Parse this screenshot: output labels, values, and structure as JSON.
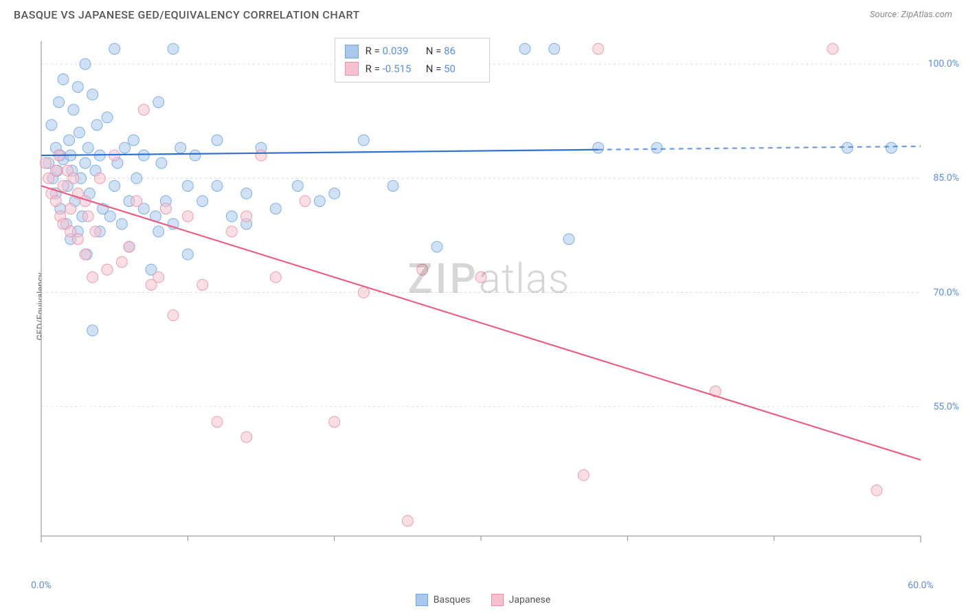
{
  "title": "BASQUE VS JAPANESE GED/EQUIVALENCY CORRELATION CHART",
  "source": "Source: ZipAtlas.com",
  "ylabel": "GED/Equivalency",
  "watermark_zip": "ZIP",
  "watermark_atlas": "atlas",
  "chart": {
    "type": "scatter",
    "xlim": [
      0,
      60
    ],
    "ylim": [
      38,
      103
    ],
    "xtick_labels": [
      "0.0%",
      "60.0%"
    ],
    "xtick_positions": [
      0,
      60
    ],
    "xtick_minor": [
      10,
      20,
      30,
      40,
      50
    ],
    "ytick_labels": [
      "55.0%",
      "70.0%",
      "85.0%",
      "100.0%"
    ],
    "ytick_positions": [
      55,
      70,
      85,
      100
    ],
    "grid_color": "#d8d8d8",
    "axis_color": "#888888",
    "background_color": "#ffffff",
    "marker_radius": 8,
    "marker_opacity": 0.55,
    "line_width": 2.2,
    "series": [
      {
        "name": "Basques",
        "color_fill": "#a9c8ec",
        "color_stroke": "#6fa3dd",
        "line_color": "#2e6fd0",
        "R": "0.039",
        "N": "86",
        "trend": {
          "x1": 0,
          "y1": 88.0,
          "x2": 60,
          "y2": 89.2,
          "solid_until_x": 38
        },
        "points": [
          [
            0.5,
            87
          ],
          [
            0.7,
            92
          ],
          [
            0.8,
            85
          ],
          [
            1,
            89
          ],
          [
            1,
            83
          ],
          [
            1.1,
            86
          ],
          [
            1.2,
            95
          ],
          [
            1.3,
            88
          ],
          [
            1.3,
            81
          ],
          [
            1.5,
            98
          ],
          [
            1.5,
            87.5
          ],
          [
            1.7,
            79
          ],
          [
            1.8,
            84
          ],
          [
            1.9,
            90
          ],
          [
            2,
            77
          ],
          [
            2,
            88
          ],
          [
            2.1,
            86
          ],
          [
            2.2,
            94
          ],
          [
            2.3,
            82
          ],
          [
            2.5,
            97
          ],
          [
            2.5,
            78
          ],
          [
            2.6,
            91
          ],
          [
            2.7,
            85
          ],
          [
            2.8,
            80
          ],
          [
            3,
            100
          ],
          [
            3,
            87
          ],
          [
            3.1,
            75
          ],
          [
            3.2,
            89
          ],
          [
            3.3,
            83
          ],
          [
            3.5,
            96
          ],
          [
            3.5,
            65
          ],
          [
            3.7,
            86
          ],
          [
            3.8,
            92
          ],
          [
            4,
            88
          ],
          [
            4,
            78
          ],
          [
            4.2,
            81
          ],
          [
            4.5,
            93
          ],
          [
            4.7,
            80
          ],
          [
            5,
            102
          ],
          [
            5,
            84
          ],
          [
            5.2,
            87
          ],
          [
            5.5,
            79
          ],
          [
            5.7,
            89
          ],
          [
            6,
            82
          ],
          [
            6,
            76
          ],
          [
            6.3,
            90
          ],
          [
            6.5,
            85
          ],
          [
            7,
            81
          ],
          [
            7,
            88
          ],
          [
            7.5,
            73
          ],
          [
            7.8,
            80
          ],
          [
            8,
            95
          ],
          [
            8,
            78
          ],
          [
            8.2,
            87
          ],
          [
            8.5,
            82
          ],
          [
            9,
            102
          ],
          [
            9,
            79
          ],
          [
            9.5,
            89
          ],
          [
            10,
            84
          ],
          [
            10,
            75
          ],
          [
            10.5,
            88
          ],
          [
            11,
            82
          ],
          [
            12,
            84
          ],
          [
            12,
            90
          ],
          [
            13,
            80
          ],
          [
            14,
            79
          ],
          [
            14,
            83
          ],
          [
            15,
            89
          ],
          [
            16,
            81
          ],
          [
            17.5,
            84
          ],
          [
            19,
            82
          ],
          [
            20,
            83
          ],
          [
            22,
            90
          ],
          [
            23,
            102
          ],
          [
            24,
            84
          ],
          [
            25,
            102
          ],
          [
            27,
            76
          ],
          [
            28,
            102
          ],
          [
            30,
            102
          ],
          [
            33,
            102
          ],
          [
            35,
            102
          ],
          [
            36,
            77
          ],
          [
            38,
            89
          ],
          [
            42,
            89
          ],
          [
            55,
            89
          ],
          [
            58,
            89
          ]
        ]
      },
      {
        "name": "Japanese",
        "color_fill": "#f6c2cf",
        "color_stroke": "#e98fa6",
        "line_color": "#e85f85",
        "R": "-0.515",
        "N": "50",
        "trend": {
          "x1": 0,
          "y1": 84.0,
          "x2": 60,
          "y2": 48.0,
          "solid_until_x": 60
        },
        "points": [
          [
            0.3,
            87
          ],
          [
            0.5,
            85
          ],
          [
            0.7,
            83
          ],
          [
            1,
            86
          ],
          [
            1,
            82
          ],
          [
            1.2,
            88
          ],
          [
            1.3,
            80
          ],
          [
            1.5,
            84
          ],
          [
            1.5,
            79
          ],
          [
            1.8,
            86
          ],
          [
            2,
            81
          ],
          [
            2,
            78
          ],
          [
            2.2,
            85
          ],
          [
            2.5,
            77
          ],
          [
            2.5,
            83
          ],
          [
            3,
            82
          ],
          [
            3,
            75
          ],
          [
            3.2,
            80
          ],
          [
            3.5,
            72
          ],
          [
            3.7,
            78
          ],
          [
            4,
            85
          ],
          [
            4.5,
            73
          ],
          [
            5,
            88
          ],
          [
            5.5,
            74
          ],
          [
            6,
            76
          ],
          [
            6.5,
            82
          ],
          [
            7,
            94
          ],
          [
            7.5,
            71
          ],
          [
            8,
            72
          ],
          [
            8.5,
            81
          ],
          [
            9,
            67
          ],
          [
            10,
            80
          ],
          [
            11,
            71
          ],
          [
            12,
            53
          ],
          [
            13,
            78
          ],
          [
            14,
            51
          ],
          [
            14,
            80
          ],
          [
            15,
            88
          ],
          [
            16,
            72
          ],
          [
            18,
            82
          ],
          [
            20,
            53
          ],
          [
            22,
            70
          ],
          [
            25,
            40
          ],
          [
            26,
            73
          ],
          [
            30,
            72
          ],
          [
            37,
            46
          ],
          [
            38,
            102
          ],
          [
            46,
            57
          ],
          [
            54,
            102
          ],
          [
            57,
            44
          ]
        ]
      }
    ]
  },
  "footer_legend": [
    {
      "label": "Basques",
      "fill": "#a9c8ec",
      "stroke": "#6fa3dd"
    },
    {
      "label": "Japanese",
      "fill": "#f6c2cf",
      "stroke": "#e98fa6"
    }
  ],
  "top_legend_swatch_size": 20
}
